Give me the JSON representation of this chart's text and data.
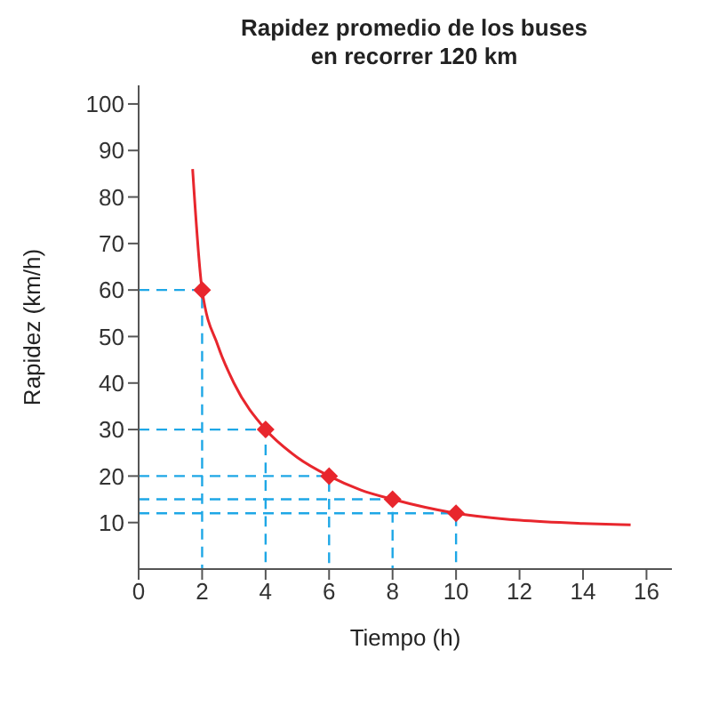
{
  "chart_data": {
    "type": "line",
    "title": "Rapidez promedio de los buses\nen recorrer 120 km",
    "xlabel": "Tiempo (h)",
    "ylabel": "Rapidez (km/h)",
    "xlim": [
      0,
      16.8
    ],
    "xticks": [
      0,
      2,
      4,
      6,
      8,
      10,
      12,
      14,
      16
    ],
    "ylim": [
      0,
      104
    ],
    "yticks": [
      10,
      20,
      30,
      40,
      50,
      60,
      70,
      80,
      90,
      100
    ],
    "series": [
      {
        "color": "#1ea7e6",
        "line_style": "dashed",
        "x": [
          0,
          2,
          2
        ],
        "values": [
          60,
          60,
          0
        ]
      },
      {
        "color": "#1ea7e6",
        "line_style": "dashed",
        "x": [
          0,
          4,
          4
        ],
        "values": [
          30,
          30,
          0
        ]
      },
      {
        "color": "#1ea7e6",
        "line_style": "dashed",
        "x": [
          0,
          6,
          6
        ],
        "values": [
          20,
          20,
          0
        ]
      },
      {
        "color": "#1ea7e6",
        "line_style": "dashed",
        "x": [
          0,
          8,
          8
        ],
        "values": [
          15,
          15,
          0
        ]
      },
      {
        "color": "#1ea7e6",
        "line_style": "dashed",
        "x": [
          0,
          10,
          10
        ],
        "values": [
          12,
          12,
          0
        ]
      },
      {
        "color": "#e8262d",
        "x": [
          1.7,
          2,
          2.5,
          3,
          4,
          5,
          6,
          7,
          8,
          10,
          12,
          14,
          15.5
        ],
        "values": [
          86,
          60,
          48,
          40,
          30,
          24,
          20,
          17,
          15,
          12,
          10.5,
          9.8,
          9.5
        ]
      },
      {
        "type": "scatter",
        "color": "#e8262d",
        "marker": "diamond",
        "x": [
          2,
          4,
          6,
          8,
          10
        ],
        "values": [
          60,
          30,
          20,
          15,
          12
        ]
      }
    ]
  }
}
